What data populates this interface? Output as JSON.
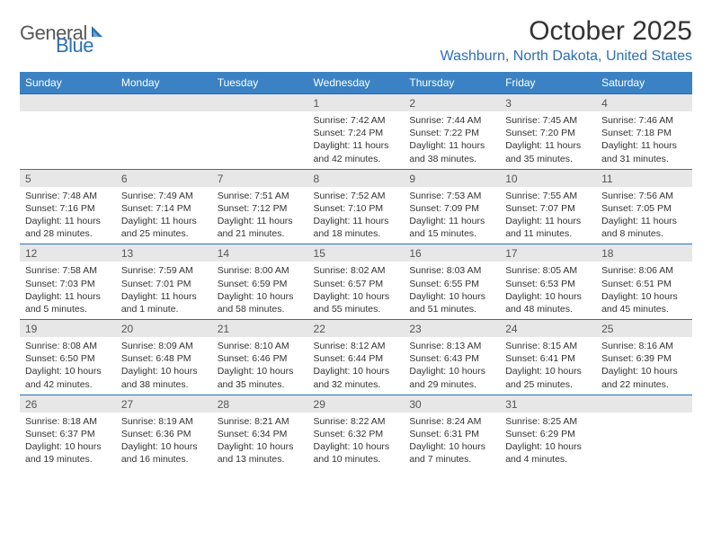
{
  "logo": {
    "text1": "General",
    "text2": "Blue"
  },
  "title": "October 2025",
  "location": "Washburn, North Dakota, United States",
  "header_bg": "#3a82c4",
  "header_fg": "#ffffff",
  "daynum_bg": "#e7e7e7",
  "border_color": "#2c6fb5",
  "days": [
    "Sunday",
    "Monday",
    "Tuesday",
    "Wednesday",
    "Thursday",
    "Friday",
    "Saturday"
  ],
  "weeks": [
    [
      null,
      null,
      null,
      {
        "n": "1",
        "sr": "7:42 AM",
        "ss": "7:24 PM",
        "dl": "11 hours and 42 minutes."
      },
      {
        "n": "2",
        "sr": "7:44 AM",
        "ss": "7:22 PM",
        "dl": "11 hours and 38 minutes."
      },
      {
        "n": "3",
        "sr": "7:45 AM",
        "ss": "7:20 PM",
        "dl": "11 hours and 35 minutes."
      },
      {
        "n": "4",
        "sr": "7:46 AM",
        "ss": "7:18 PM",
        "dl": "11 hours and 31 minutes."
      }
    ],
    [
      {
        "n": "5",
        "sr": "7:48 AM",
        "ss": "7:16 PM",
        "dl": "11 hours and 28 minutes."
      },
      {
        "n": "6",
        "sr": "7:49 AM",
        "ss": "7:14 PM",
        "dl": "11 hours and 25 minutes."
      },
      {
        "n": "7",
        "sr": "7:51 AM",
        "ss": "7:12 PM",
        "dl": "11 hours and 21 minutes."
      },
      {
        "n": "8",
        "sr": "7:52 AM",
        "ss": "7:10 PM",
        "dl": "11 hours and 18 minutes."
      },
      {
        "n": "9",
        "sr": "7:53 AM",
        "ss": "7:09 PM",
        "dl": "11 hours and 15 minutes."
      },
      {
        "n": "10",
        "sr": "7:55 AM",
        "ss": "7:07 PM",
        "dl": "11 hours and 11 minutes."
      },
      {
        "n": "11",
        "sr": "7:56 AM",
        "ss": "7:05 PM",
        "dl": "11 hours and 8 minutes."
      }
    ],
    [
      {
        "n": "12",
        "sr": "7:58 AM",
        "ss": "7:03 PM",
        "dl": "11 hours and 5 minutes."
      },
      {
        "n": "13",
        "sr": "7:59 AM",
        "ss": "7:01 PM",
        "dl": "11 hours and 1 minute."
      },
      {
        "n": "14",
        "sr": "8:00 AM",
        "ss": "6:59 PM",
        "dl": "10 hours and 58 minutes."
      },
      {
        "n": "15",
        "sr": "8:02 AM",
        "ss": "6:57 PM",
        "dl": "10 hours and 55 minutes."
      },
      {
        "n": "16",
        "sr": "8:03 AM",
        "ss": "6:55 PM",
        "dl": "10 hours and 51 minutes."
      },
      {
        "n": "17",
        "sr": "8:05 AM",
        "ss": "6:53 PM",
        "dl": "10 hours and 48 minutes."
      },
      {
        "n": "18",
        "sr": "8:06 AM",
        "ss": "6:51 PM",
        "dl": "10 hours and 45 minutes."
      }
    ],
    [
      {
        "n": "19",
        "sr": "8:08 AM",
        "ss": "6:50 PM",
        "dl": "10 hours and 42 minutes."
      },
      {
        "n": "20",
        "sr": "8:09 AM",
        "ss": "6:48 PM",
        "dl": "10 hours and 38 minutes."
      },
      {
        "n": "21",
        "sr": "8:10 AM",
        "ss": "6:46 PM",
        "dl": "10 hours and 35 minutes."
      },
      {
        "n": "22",
        "sr": "8:12 AM",
        "ss": "6:44 PM",
        "dl": "10 hours and 32 minutes."
      },
      {
        "n": "23",
        "sr": "8:13 AM",
        "ss": "6:43 PM",
        "dl": "10 hours and 29 minutes."
      },
      {
        "n": "24",
        "sr": "8:15 AM",
        "ss": "6:41 PM",
        "dl": "10 hours and 25 minutes."
      },
      {
        "n": "25",
        "sr": "8:16 AM",
        "ss": "6:39 PM",
        "dl": "10 hours and 22 minutes."
      }
    ],
    [
      {
        "n": "26",
        "sr": "8:18 AM",
        "ss": "6:37 PM",
        "dl": "10 hours and 19 minutes."
      },
      {
        "n": "27",
        "sr": "8:19 AM",
        "ss": "6:36 PM",
        "dl": "10 hours and 16 minutes."
      },
      {
        "n": "28",
        "sr": "8:21 AM",
        "ss": "6:34 PM",
        "dl": "10 hours and 13 minutes."
      },
      {
        "n": "29",
        "sr": "8:22 AM",
        "ss": "6:32 PM",
        "dl": "10 hours and 10 minutes."
      },
      {
        "n": "30",
        "sr": "8:24 AM",
        "ss": "6:31 PM",
        "dl": "10 hours and 7 minutes."
      },
      {
        "n": "31",
        "sr": "8:25 AM",
        "ss": "6:29 PM",
        "dl": "10 hours and 4 minutes."
      },
      null
    ]
  ],
  "labels": {
    "sunrise": "Sunrise:",
    "sunset": "Sunset:",
    "daylight": "Daylight:"
  }
}
